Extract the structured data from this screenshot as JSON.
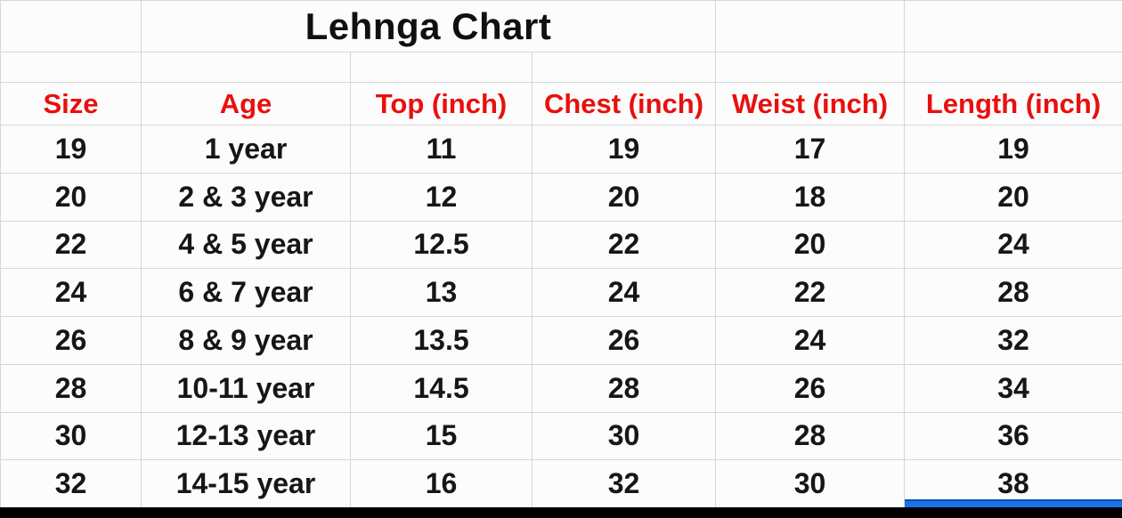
{
  "sheet": {
    "title": "Lehnga Chart",
    "columns": [
      "Size",
      "Age",
      "Top (inch)",
      "Chest (inch)",
      "Weist (inch)",
      "Length (inch)"
    ],
    "rows": [
      [
        "19",
        "1 year",
        "11",
        "19",
        "17",
        "19"
      ],
      [
        "20",
        "2 & 3 year",
        "12",
        "20",
        "18",
        "20"
      ],
      [
        "22",
        "4 & 5 year",
        "12.5",
        "22",
        "20",
        "24"
      ],
      [
        "24",
        "6 & 7 year",
        "13",
        "24",
        "22",
        "28"
      ],
      [
        "26",
        "8 & 9 year",
        "13.5",
        "26",
        "24",
        "32"
      ],
      [
        "28",
        "10-11 year",
        "14.5",
        "28",
        "26",
        "34"
      ],
      [
        "30",
        "12-13 year",
        "15",
        "30",
        "28",
        "36"
      ],
      [
        "32",
        "14-15 year",
        "16",
        "32",
        "30",
        "38"
      ]
    ],
    "colors": {
      "header_text": "#e8100e",
      "body_text": "#161616",
      "gridline": "#d6d6d6",
      "selection_blue": "#1a73e8",
      "bottom_bar": "#000000",
      "background": "#fcfcfc"
    }
  }
}
